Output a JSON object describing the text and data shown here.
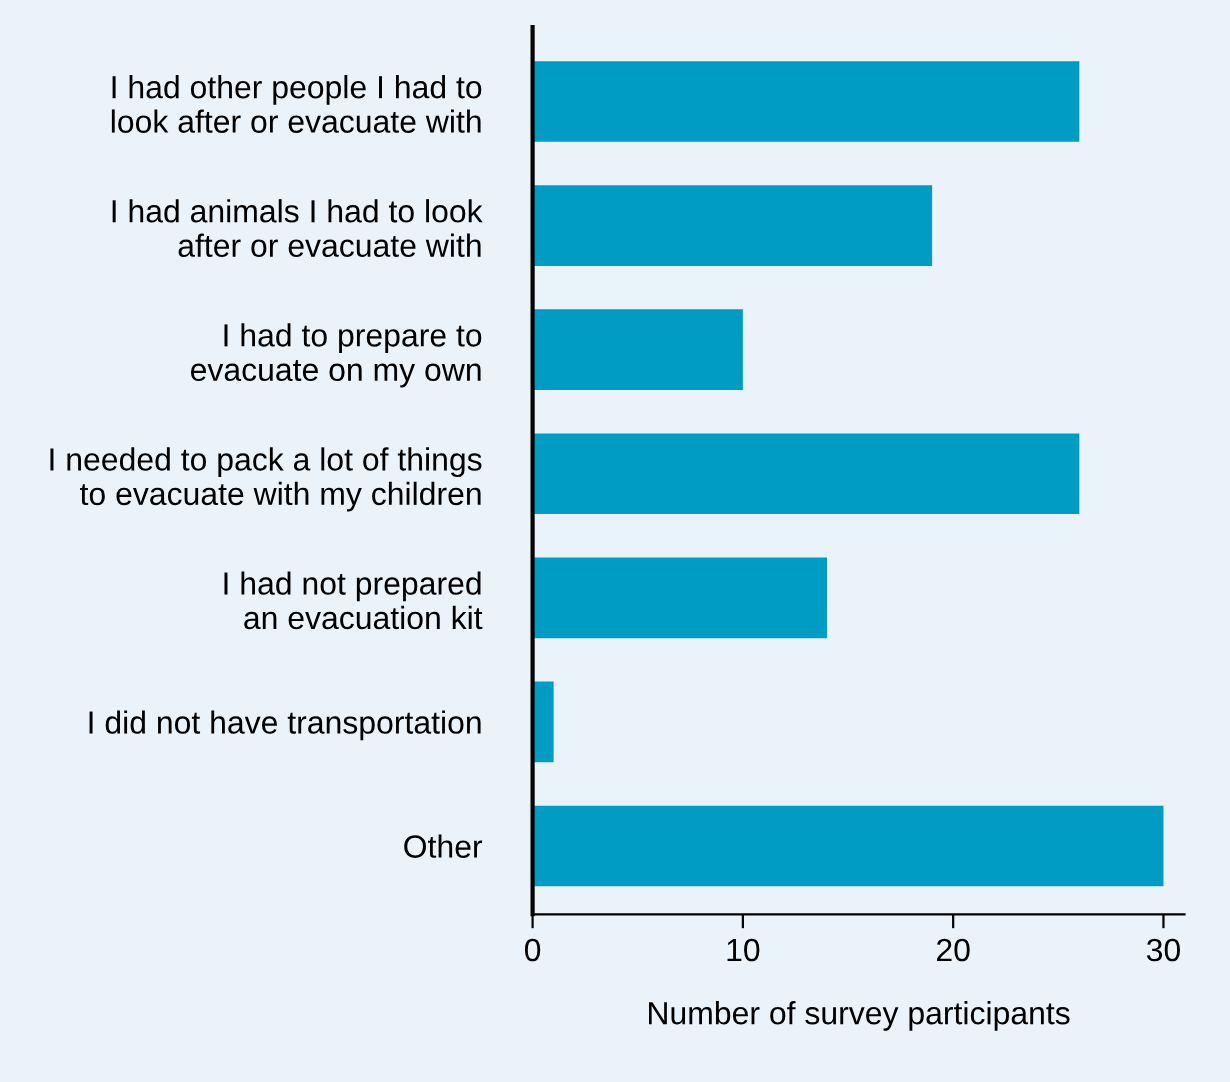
{
  "chart_data": {
    "type": "bar",
    "orientation": "horizontal",
    "xlabel": "Number of survey participants",
    "categories": [
      "I had other people I had to\nlook after or evacuate with",
      "I had animals I had to look\nafter or evacuate with",
      "I had to prepare to\nevacuate on my own",
      "I needed to pack a lot of things\nto evacuate with my children",
      "I had not prepared\nan evacuation kit",
      "I did not have transportation",
      "Other"
    ],
    "values": [
      26,
      19,
      10,
      26,
      14,
      1,
      30
    ],
    "color": "#009cc4",
    "xlim": [
      0,
      31
    ],
    "xticks": [
      0,
      10,
      20,
      30
    ],
    "grid": false,
    "legend": false
  }
}
